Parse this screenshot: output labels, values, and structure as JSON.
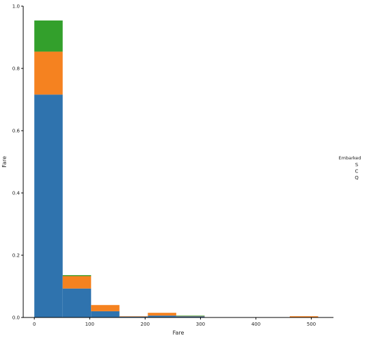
{
  "chart_data": {
    "type": "bar",
    "stacked": true,
    "xlabel": "Fare",
    "ylabel": "Fare",
    "xlim": [
      -20,
      540
    ],
    "ylim": [
      0,
      1.0
    ],
    "xticks": [
      0,
      100,
      200,
      300,
      400,
      500
    ],
    "yticks": [
      0.0,
      0.2,
      0.4,
      0.6,
      0.8,
      1.0
    ],
    "bin_edges": [
      0,
      51.2,
      102.5,
      153.7,
      204.9,
      256.2,
      307.4,
      358.6,
      409.8,
      461.1,
      512.3
    ],
    "series": [
      {
        "name": "S",
        "color": "#2f73ae",
        "values": [
          0.716,
          0.093,
          0.02,
          0.003,
          0.006,
          0.004,
          0,
          0,
          0,
          0
        ]
      },
      {
        "name": "C",
        "color": "#f58220",
        "values": [
          0.138,
          0.04,
          0.02,
          0.001,
          0.009,
          0.001,
          0,
          0,
          0,
          0.004
        ]
      },
      {
        "name": "Q",
        "color": "#33a02c",
        "values": [
          0.1,
          0.003,
          0,
          0,
          0,
          0.001,
          0,
          0,
          0,
          0
        ]
      }
    ],
    "legend": {
      "title": "Embarked",
      "entries": [
        "S",
        "C",
        "Q"
      ],
      "placement": "right"
    },
    "grid": false
  }
}
